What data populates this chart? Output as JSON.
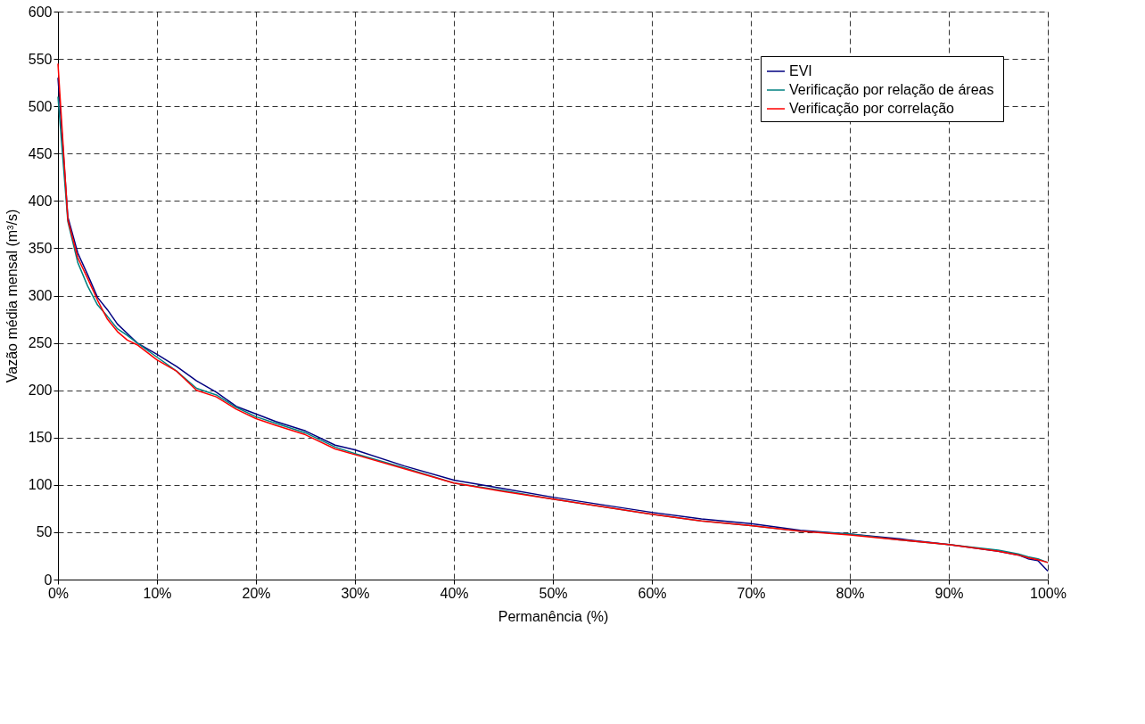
{
  "chart_data": {
    "type": "line",
    "xlabel": "Permanência (%)",
    "ylabel": "Vazão média mensal (m³/s)",
    "x": [
      0,
      1,
      2,
      3,
      4,
      5,
      6,
      7,
      8,
      10,
      12,
      14,
      16,
      18,
      20,
      22,
      25,
      28,
      30,
      35,
      40,
      45,
      50,
      55,
      60,
      65,
      70,
      75,
      80,
      85,
      90,
      95,
      97,
      98,
      99,
      100
    ],
    "xlim": [
      0,
      100
    ],
    "xticks": [
      {
        "value": 0,
        "label": "0%"
      },
      {
        "value": 10,
        "label": "10%"
      },
      {
        "value": 20,
        "label": "20%"
      },
      {
        "value": 30,
        "label": "30%"
      },
      {
        "value": 40,
        "label": "40%"
      },
      {
        "value": 50,
        "label": "50%"
      },
      {
        "value": 60,
        "label": "60%"
      },
      {
        "value": 70,
        "label": "70%"
      },
      {
        "value": 80,
        "label": "80%"
      },
      {
        "value": 90,
        "label": "90%"
      },
      {
        "value": 100,
        "label": "100%"
      }
    ],
    "ylim": [
      0,
      600
    ],
    "yticks": [
      0,
      50,
      100,
      150,
      200,
      250,
      300,
      350,
      400,
      450,
      500,
      550,
      600
    ],
    "series": [
      {
        "name": "EVI",
        "color": "#000080",
        "values": [
          530,
          383,
          345,
          322,
          298,
          285,
          270,
          260,
          250,
          238,
          225,
          210,
          198,
          183,
          175,
          167,
          157,
          142,
          137,
          120,
          105,
          96,
          87,
          79,
          71,
          64,
          59,
          52,
          48,
          43,
          37,
          30,
          26,
          22,
          20,
          9
        ]
      },
      {
        "name": "Verificação por  relação de áreas",
        "color": "#008080",
        "values": [
          510,
          378,
          335,
          310,
          290,
          278,
          265,
          258,
          250,
          235,
          220,
          202,
          195,
          182,
          172,
          165,
          155,
          140,
          133,
          118,
          102,
          94,
          85,
          77,
          69,
          62,
          57,
          51,
          48,
          42,
          37,
          31,
          27,
          24,
          22,
          18
        ]
      },
      {
        "name": "Verificação por correlação",
        "color": "#ff0000",
        "values": [
          545,
          380,
          340,
          318,
          295,
          275,
          262,
          253,
          248,
          232,
          220,
          200,
          193,
          180,
          170,
          163,
          153,
          138,
          132,
          117,
          102,
          93,
          85,
          77,
          69,
          62,
          57,
          51,
          47,
          42,
          37,
          30,
          26,
          23,
          21,
          18
        ]
      }
    ],
    "grid": true,
    "legend": "top right",
    "line_style": "solid",
    "marker": "none"
  }
}
